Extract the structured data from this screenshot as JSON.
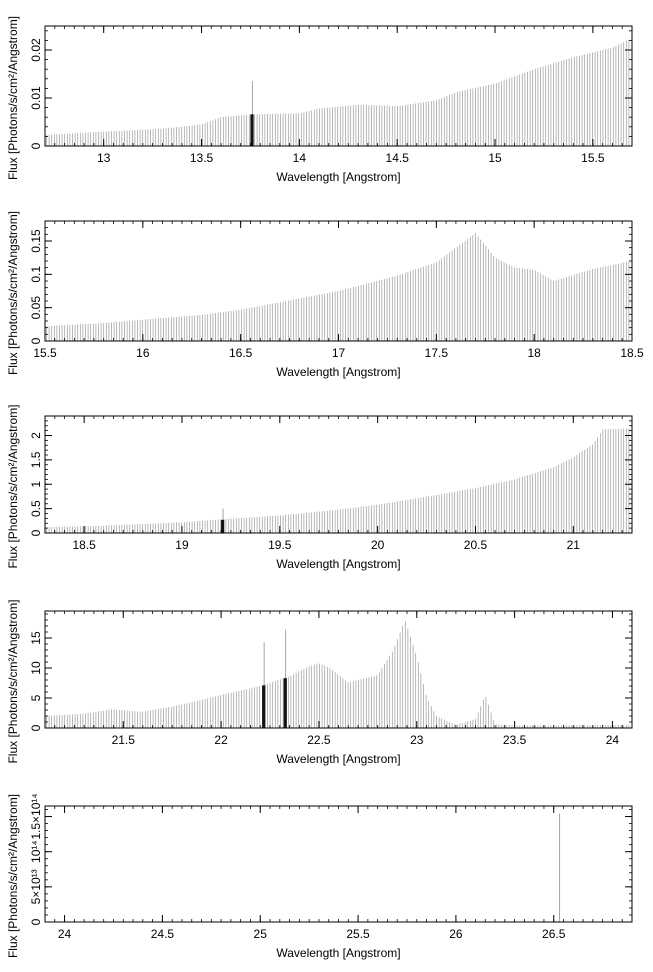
{
  "chart_data": [
    {
      "type": "bar",
      "xlabel": "Wavelength [Angstrom]",
      "ylabel": "Flux [Photons/s/cm²/Angstrom]",
      "xlim": [
        12.7,
        15.7
      ],
      "ylim": [
        0,
        0.025
      ],
      "xticks": [
        {
          "v": 13,
          "label": "13"
        },
        {
          "v": 13.5,
          "label": "13.5"
        },
        {
          "v": 14,
          "label": "14"
        },
        {
          "v": 14.5,
          "label": "14.5"
        },
        {
          "v": 15,
          "label": "15"
        },
        {
          "v": 15.5,
          "label": "15.5"
        }
      ],
      "yticks": [
        {
          "v": 0,
          "label": "0"
        },
        {
          "v": 0.01,
          "label": "0.01"
        },
        {
          "v": 0.02,
          "label": "0.02"
        }
      ],
      "series": [
        {
          "x": [
            12.7,
            13.0,
            13.3,
            13.5,
            13.6,
            13.75,
            14.0,
            14.1,
            14.3,
            14.5,
            14.7,
            14.8,
            15.0,
            15.2,
            15.4,
            15.6,
            15.7
          ],
          "y": [
            0.0023,
            0.003,
            0.0036,
            0.0045,
            0.006,
            0.0066,
            0.0068,
            0.0078,
            0.0086,
            0.0083,
            0.0095,
            0.0112,
            0.013,
            0.016,
            0.0185,
            0.0205,
            0.0225
          ]
        }
      ],
      "spikes": [
        {
          "x": 13.76,
          "y": 0.0135
        }
      ],
      "highlights": [
        {
          "x": 13.76,
          "y": 0.0066
        }
      ]
    },
    {
      "type": "bar",
      "xlabel": "Wavelength [Angstrom]",
      "ylabel": "Flux [Photons/s/cm²/Angstrom]",
      "xlim": [
        15.5,
        18.5
      ],
      "ylim": [
        0,
        0.18
      ],
      "xticks": [
        {
          "v": 15.5,
          "label": "15.5"
        },
        {
          "v": 16,
          "label": "16"
        },
        {
          "v": 16.5,
          "label": "16.5"
        },
        {
          "v": 17,
          "label": "17"
        },
        {
          "v": 17.5,
          "label": "17.5"
        },
        {
          "v": 18,
          "label": "18"
        },
        {
          "v": 18.5,
          "label": "18.5"
        }
      ],
      "yticks": [
        {
          "v": 0,
          "label": "0"
        },
        {
          "v": 0.05,
          "label": "0.05"
        },
        {
          "v": 0.1,
          "label": "0.1"
        },
        {
          "v": 0.15,
          "label": "0.15"
        }
      ],
      "series": [
        {
          "x": [
            15.5,
            15.8,
            16.0,
            16.3,
            16.5,
            16.7,
            17.0,
            17.3,
            17.5,
            17.6,
            17.7,
            17.8,
            17.9,
            18.0,
            18.1,
            18.3,
            18.5
          ],
          "y": [
            0.022,
            0.027,
            0.032,
            0.039,
            0.047,
            0.058,
            0.075,
            0.098,
            0.118,
            0.14,
            0.162,
            0.125,
            0.11,
            0.107,
            0.09,
            0.108,
            0.12
          ]
        }
      ],
      "spikes": [],
      "highlights": []
    },
    {
      "type": "bar",
      "xlabel": "Wavelength [Angstrom]",
      "ylabel": "Flux [Photons/s/cm²/Angstrom]",
      "xlim": [
        18.3,
        21.3
      ],
      "ylim": [
        0,
        2.4
      ],
      "xticks": [
        {
          "v": 18.5,
          "label": "18.5"
        },
        {
          "v": 19,
          "label": "19"
        },
        {
          "v": 19.5,
          "label": "19.5"
        },
        {
          "v": 20,
          "label": "20"
        },
        {
          "v": 20.5,
          "label": "20.5"
        },
        {
          "v": 21,
          "label": "21"
        }
      ],
      "yticks": [
        {
          "v": 0,
          "label": "0"
        },
        {
          "v": 0.5,
          "label": "0.5"
        },
        {
          "v": 1,
          "label": "1"
        },
        {
          "v": 1.5,
          "label": "1.5"
        },
        {
          "v": 2,
          "label": "2"
        }
      ],
      "series": [
        {
          "x": [
            18.3,
            18.6,
            19.0,
            19.2,
            19.5,
            19.8,
            20.0,
            20.3,
            20.5,
            20.7,
            20.9,
            21.0,
            21.1,
            21.15,
            21.3
          ],
          "y": [
            0.12,
            0.15,
            0.22,
            0.28,
            0.36,
            0.48,
            0.58,
            0.78,
            0.92,
            1.1,
            1.35,
            1.55,
            1.82,
            2.12,
            2.15
          ]
        }
      ],
      "spikes": [
        {
          "x": 19.21,
          "y": 0.5
        }
      ],
      "highlights": [
        {
          "x": 19.21,
          "y": 0.27
        }
      ]
    },
    {
      "type": "bar",
      "xlabel": "Wavelength [Angstrom]",
      "ylabel": "Flux [Photons/s/cm²/Angstrom]",
      "xlim": [
        21.1,
        24.1
      ],
      "ylim": [
        0,
        19.5
      ],
      "xticks": [
        {
          "v": 21.5,
          "label": "21.5"
        },
        {
          "v": 22,
          "label": "22"
        },
        {
          "v": 22.5,
          "label": "22.5"
        },
        {
          "v": 23,
          "label": "23"
        },
        {
          "v": 23.5,
          "label": "23.5"
        },
        {
          "v": 24,
          "label": "24"
        }
      ],
      "yticks": [
        {
          "v": 0,
          "label": "0"
        },
        {
          "v": 5,
          "label": "5"
        },
        {
          "v": 10,
          "label": "10"
        },
        {
          "v": 15,
          "label": "15"
        }
      ],
      "series": [
        {
          "x": [
            21.1,
            21.3,
            21.45,
            21.6,
            21.8,
            22.0,
            22.2,
            22.35,
            22.45,
            22.5,
            22.55,
            22.65,
            22.8,
            22.88,
            22.94,
            23.0,
            23.05,
            23.1,
            23.2,
            23.3,
            23.35,
            23.4,
            23.5,
            24.1
          ],
          "y": [
            2.0,
            2.4,
            3.1,
            2.7,
            3.9,
            5.5,
            7.0,
            8.6,
            10.3,
            10.8,
            10.1,
            7.6,
            8.8,
            13.0,
            18.0,
            12.0,
            5.2,
            2.0,
            0.5,
            1.5,
            5.5,
            0.6,
            0.4,
            0.5
          ]
        }
      ],
      "spikes": [
        {
          "x": 22.22,
          "y": 14.3
        },
        {
          "x": 22.33,
          "y": 16.4
        }
      ],
      "highlights": [
        {
          "x": 22.22,
          "y": 7.1
        },
        {
          "x": 22.33,
          "y": 8.3
        }
      ]
    },
    {
      "type": "bar",
      "xlabel": "Wavelength [Angstrom]",
      "ylabel": "Flux [Photons/s/cm²/Angstrom]",
      "xlim": [
        23.9,
        26.9
      ],
      "ylim": [
        0,
        165000000000000.0
      ],
      "xticks": [
        {
          "v": 24,
          "label": "24"
        },
        {
          "v": 24.5,
          "label": "24.5"
        },
        {
          "v": 25,
          "label": "25"
        },
        {
          "v": 25.5,
          "label": "25.5"
        },
        {
          "v": 26,
          "label": "26"
        },
        {
          "v": 26.5,
          "label": "26.5"
        }
      ],
      "yticks": [
        {
          "v": 0,
          "label": "0"
        },
        {
          "v": 50000000000000.0,
          "label": "5×10¹³"
        },
        {
          "v": 100000000000000.0,
          "label": "10¹⁴"
        },
        {
          "v": 150000000000000.0,
          "label": "1.5×10¹⁴"
        }
      ],
      "series": [
        {
          "x": [
            23.9,
            26.9
          ],
          "y": [
            0,
            0
          ]
        }
      ],
      "spikes": [
        {
          "x": 26.53,
          "y": 154000000000000.0
        }
      ],
      "highlights": []
    }
  ]
}
